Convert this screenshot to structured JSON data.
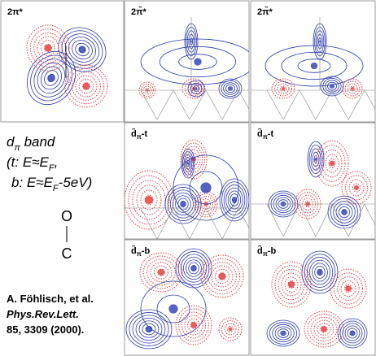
{
  "panels": [
    {
      "label": [
        "2π*",
        "",
        ""
      ]
    },
    {
      "label": [
        "2π̃*",
        "",
        ""
      ]
    },
    {
      "label": [
        "2π̃*",
        "",
        ""
      ]
    },
    {
      "label": [
        "d̃",
        "π",
        "-t"
      ]
    },
    {
      "label": [
        "d̃",
        "π",
        "-t"
      ]
    },
    {
      "label": [
        "d̃",
        "π",
        "-b"
      ]
    },
    {
      "label": [
        "d̃",
        "π",
        "-b"
      ]
    }
  ],
  "legend": {
    "line1": [
      "d",
      "π",
      " band"
    ],
    "line2": [
      "(t: E≈E",
      "F",
      ","
    ],
    "line3": [
      "b: E≈E",
      "F",
      "-5eV)"
    ],
    "atom_top": "O",
    "atom_bottom": "C"
  },
  "citation": {
    "authors": "A. Föhlisch, et al.",
    "journal": "Phys.Rev.Lett.",
    "reference": "85, 3309 (2000)."
  }
}
